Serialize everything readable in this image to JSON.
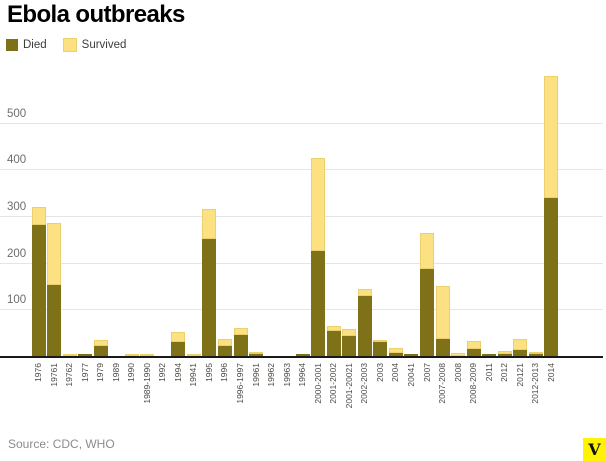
{
  "header": {
    "title": "Ebola outbreaks"
  },
  "footer": {
    "source": "Source: CDC, WHO",
    "logo_letter": "V"
  },
  "chart_data": {
    "type": "bar",
    "stacked": true,
    "title": "Ebola outbreaks",
    "xlabel": "",
    "ylabel": "",
    "ylim": [
      0,
      620
    ],
    "yticks": [
      100,
      200,
      300,
      400,
      500
    ],
    "grid": true,
    "legend_position": "top-left",
    "categories": [
      "1976",
      "19761",
      "19762",
      "1977",
      "1979",
      "1989",
      "1990",
      "1989-1990",
      "1992",
      "1994",
      "19941",
      "1995",
      "1996",
      "1996-1997",
      "19961",
      "19962",
      "19963",
      "19964",
      "2000-2001",
      "2001-2002",
      "2001-20021",
      "2002-2003",
      "2003",
      "2004",
      "20041",
      "2007",
      "2007-2008",
      "2008",
      "2008-2009",
      "2011",
      "2012",
      "20121",
      "2012-2013",
      "2014"
    ],
    "series": [
      {
        "name": "Died",
        "color": "#7f7118",
        "values": [
          280,
          151,
          0,
          1,
          22,
          0,
          0,
          0,
          0,
          31,
          0,
          250,
          21,
          45,
          1,
          0,
          0,
          1,
          224,
          53,
          43,
          128,
          29,
          7,
          1,
          187,
          37,
          0,
          14,
          1,
          4,
          13,
          3,
          338
        ]
      },
      {
        "name": "Survived",
        "color": "#fce183",
        "values": [
          38,
          133,
          1,
          0,
          12,
          0,
          4,
          3,
          0,
          21,
          1,
          65,
          16,
          15,
          1,
          0,
          0,
          0,
          201,
          12,
          14,
          15,
          6,
          10,
          0,
          77,
          112,
          6,
          18,
          0,
          7,
          23,
          3,
          261
        ]
      }
    ],
    "totals": [
      318,
      284,
      1,
      1,
      34,
      0,
      4,
      3,
      0,
      52,
      1,
      315,
      37,
      60,
      2,
      0,
      0,
      1,
      425,
      65,
      57,
      143,
      35,
      17,
      1,
      264,
      149,
      6,
      32,
      1,
      11,
      36,
      6,
      599
    ]
  }
}
